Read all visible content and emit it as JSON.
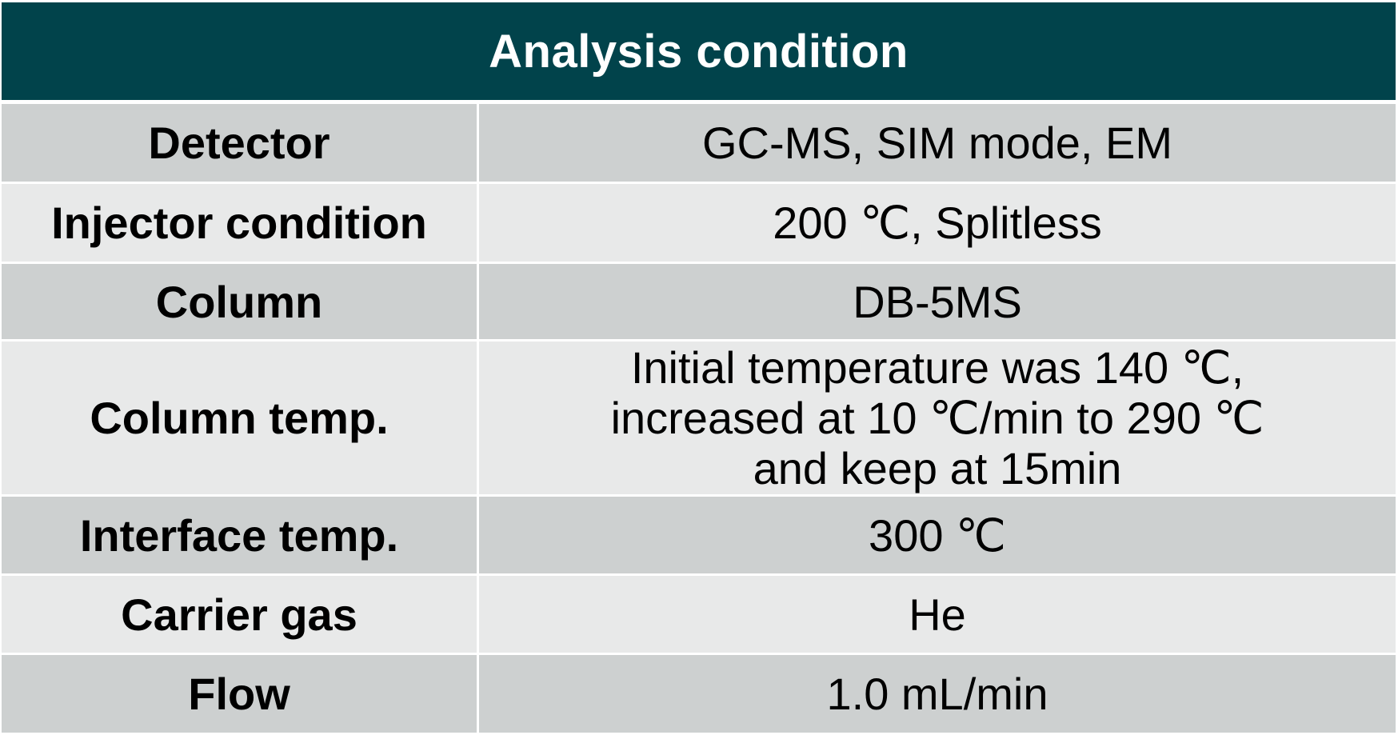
{
  "title": "Analysis condition",
  "rows": [
    {
      "label": "Detector",
      "value": "GC-MS, SIM mode, EM"
    },
    {
      "label": "Injector condition",
      "value": "200 ℃, Splitless"
    },
    {
      "label": "Column",
      "value": "DB-5MS"
    },
    {
      "label": "Column temp.",
      "value": "Initial temperature was 140 ℃,\nincreased at 10 ℃/min to 290 ℃\nand keep at 15min"
    },
    {
      "label": "Interface temp.",
      "value": "300 ℃"
    },
    {
      "label": "Carrier gas",
      "value": "He"
    },
    {
      "label": "Flow",
      "value": "1.0 mL/min"
    }
  ],
  "colors": {
    "header_bg": "#01434b",
    "row_dark": "#cdd0d0",
    "row_light": "#e8e9e9"
  }
}
